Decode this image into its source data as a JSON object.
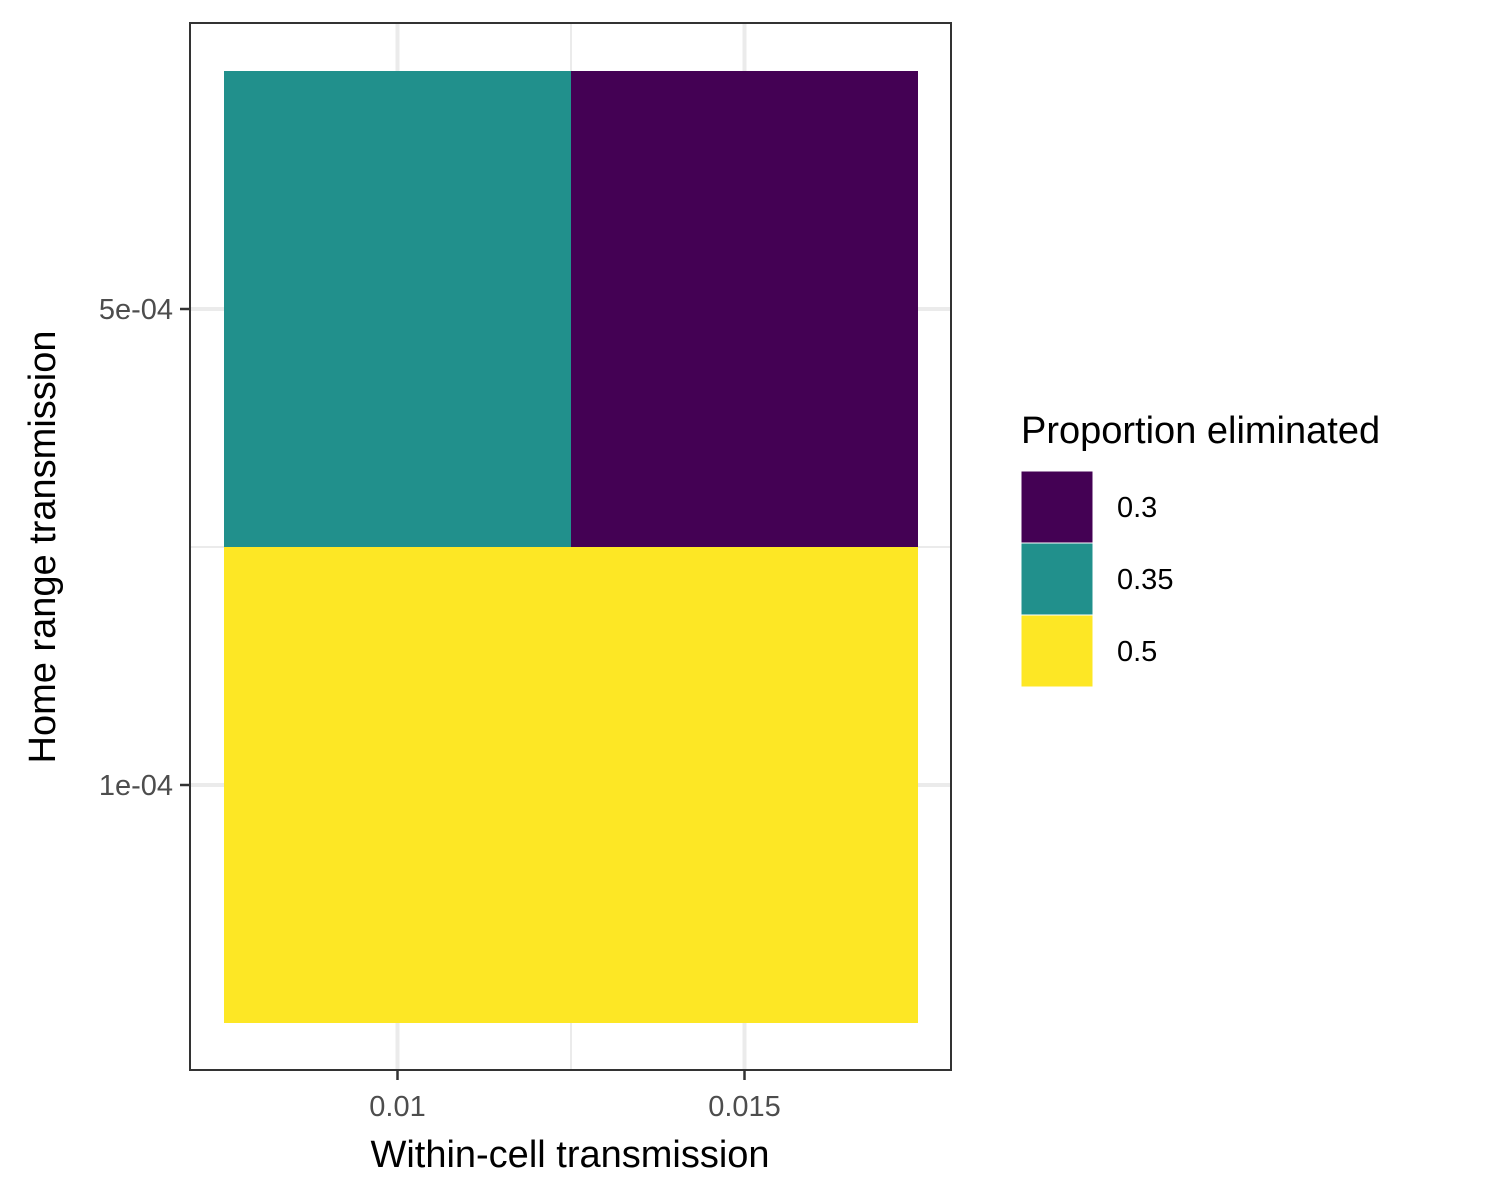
{
  "chart_data": {
    "type": "heatmap",
    "xlabel": "Within-cell transmission",
    "ylabel": "Home range transmission",
    "x_categories": [
      "0.01",
      "0.015"
    ],
    "y_categories": [
      "1e-04",
      "5e-04"
    ],
    "cells": [
      {
        "x": "0.01",
        "y": "1e-04",
        "value": 0.5
      },
      {
        "x": "0.015",
        "y": "1e-04",
        "value": 0.5
      },
      {
        "x": "0.01",
        "y": "5e-04",
        "value": 0.35
      },
      {
        "x": "0.015",
        "y": "5e-04",
        "value": 0.3
      }
    ],
    "legend": {
      "title": "Proportion eliminated",
      "placement": "right",
      "entries": [
        {
          "label": "0.3",
          "value": 0.3,
          "color": "#440154"
        },
        {
          "label": "0.35",
          "value": 0.35,
          "color": "#21908C"
        },
        {
          "label": "0.5",
          "value": 0.5,
          "color": "#FDE725"
        }
      ]
    },
    "grid": true,
    "colors": {
      "panel_border": "#333333",
      "grid": "#ebebeb",
      "tick_text": "#4d4d4d",
      "background": "#ffffff"
    }
  }
}
